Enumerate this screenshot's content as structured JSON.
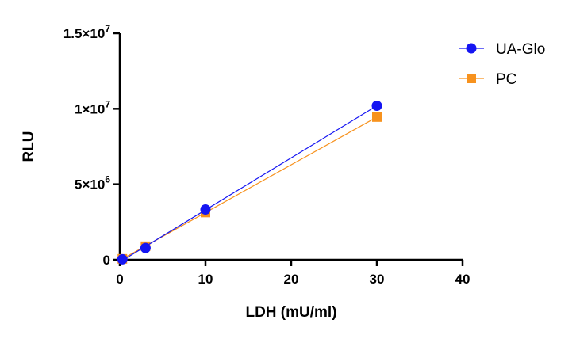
{
  "chart_data": {
    "type": "line",
    "xlabel": "LDH (mU/ml)",
    "ylabel": "RLU",
    "xlim": [
      0,
      40
    ],
    "ylim": [
      0,
      15000000
    ],
    "x_ticks": [
      0,
      10,
      20,
      30,
      40
    ],
    "x_tick_labels": [
      "0",
      "10",
      "20",
      "30",
      "40"
    ],
    "y_ticks": [
      0,
      5000000,
      10000000,
      15000000
    ],
    "y_tick_labels": [
      {
        "base": "0",
        "exp": ""
      },
      {
        "base": "5×10",
        "exp": "6"
      },
      {
        "base": "1×10",
        "exp": "7"
      },
      {
        "base": "1.5×10",
        "exp": "7"
      }
    ],
    "grid": false,
    "legend_position": "top-right",
    "series": [
      {
        "name": "UA-Glo",
        "color": "#1515f2",
        "marker": "circle",
        "x": [
          0.3,
          3,
          10,
          30
        ],
        "y": [
          30000,
          780000,
          3330000,
          10200000
        ]
      },
      {
        "name": "PC",
        "color": "#f7921e",
        "marker": "square",
        "x": [
          0.3,
          3,
          10,
          30
        ],
        "y": [
          60000,
          900000,
          3130000,
          9450000
        ]
      }
    ]
  }
}
